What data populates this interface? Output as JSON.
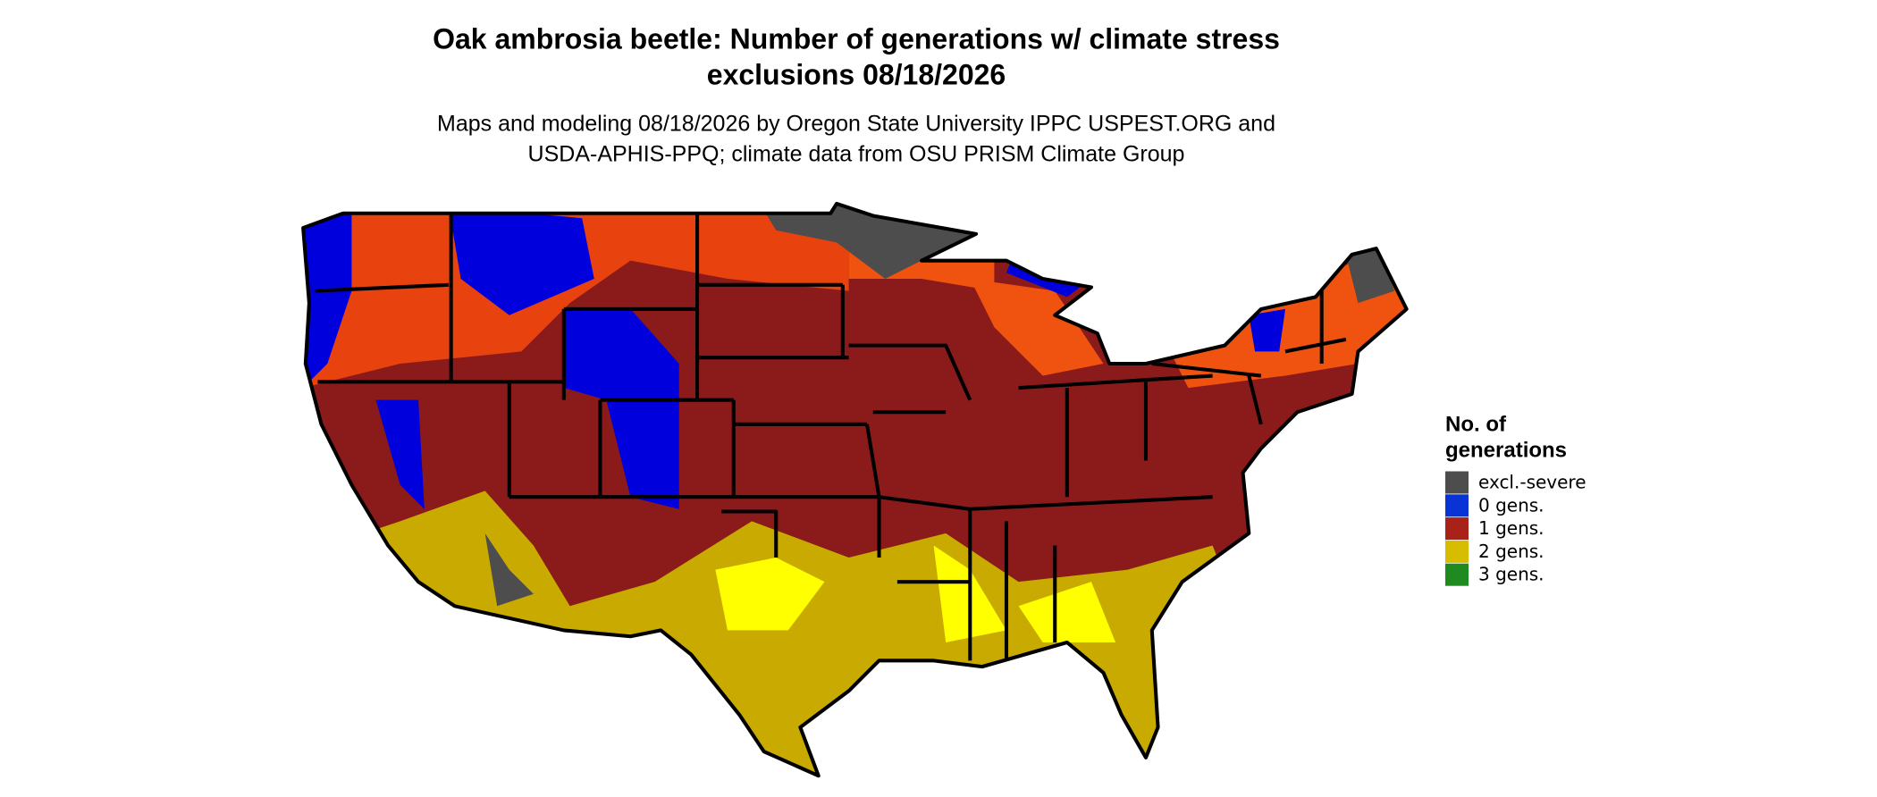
{
  "header": {
    "title": [
      "Oak ambrosia beetle: Number of generations w/ climate stress",
      "exclusions 08/18/2026"
    ],
    "subtitle": [
      "Maps and modeling 08/18/2026 by Oregon State University IPPC USPEST.ORG and",
      "USDA-APHIS-PPQ; climate data from OSU PRISM Climate Group"
    ]
  },
  "legend": {
    "title": [
      "No. of",
      "generations"
    ],
    "items": [
      {
        "label": "excl.-severe",
        "color": "#4d4d4d"
      },
      {
        "label": "0 gens.",
        "color": "#0a33d6"
      },
      {
        "label": "1 gens.",
        "color": "#a82219"
      },
      {
        "label": "2 gens.",
        "color": "#d6bd00"
      },
      {
        "label": "3 gens.",
        "color": "#1f8a1f"
      }
    ]
  }
}
